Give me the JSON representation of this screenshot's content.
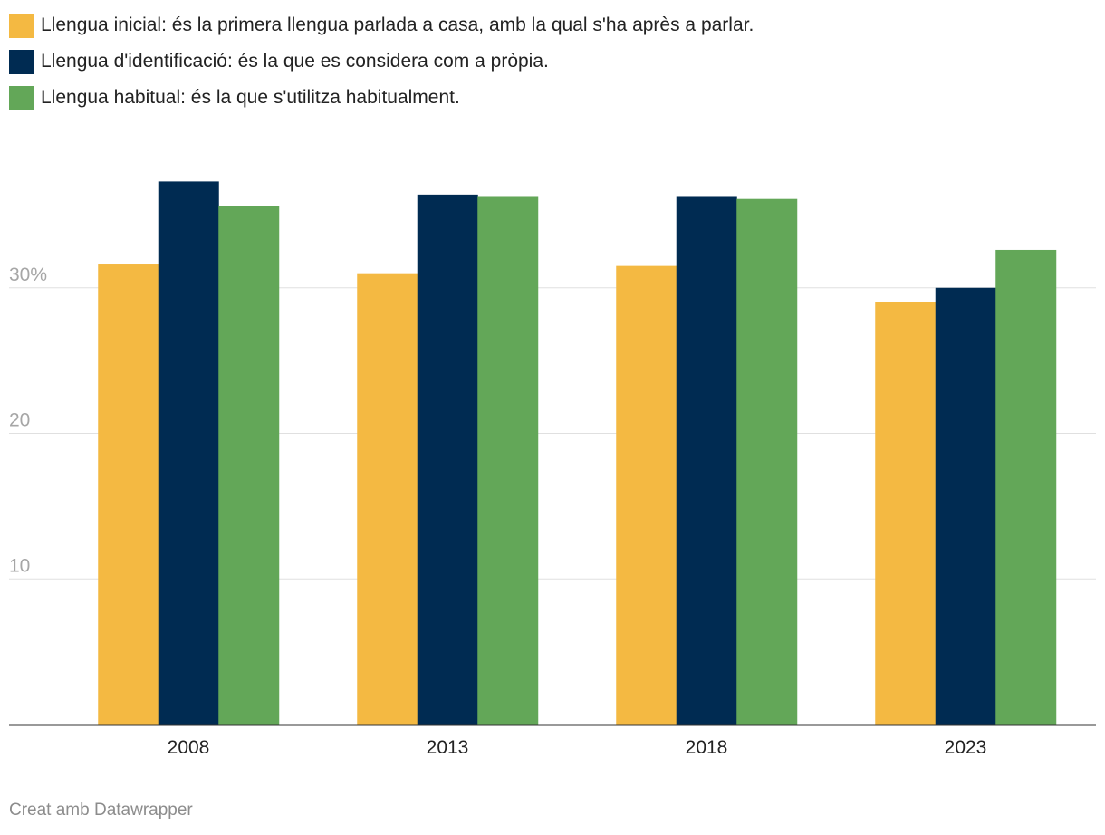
{
  "legend": [
    {
      "label": "Llengua inicial: és la primera llengua parlada a casa, amb la qual s'ha après a parlar.",
      "color": "#f4b942"
    },
    {
      "label": "Llengua d'identificació: és la que es considera com a pròpia.",
      "color": "#002b52"
    },
    {
      "label": "Llengua habitual: és la que s'utilitza habitualment.",
      "color": "#63a758"
    }
  ],
  "footer": {
    "credit": "Creat amb Datawrapper"
  },
  "chart_data": {
    "type": "bar",
    "categories": [
      "2008",
      "2013",
      "2018",
      "2023"
    ],
    "series": [
      {
        "name": "Llengua inicial: és la primera llengua parlada a casa, amb la qual s'ha après a parlar.",
        "color": "#f4b942",
        "values": [
          31.6,
          31.0,
          31.5,
          29.0
        ]
      },
      {
        "name": "Llengua d'identificació: és la que es considera com a pròpia.",
        "color": "#002b52",
        "values": [
          37.3,
          36.4,
          36.3,
          30.0
        ]
      },
      {
        "name": "Llengua habitual: és la que s'utilitza habitualment.",
        "color": "#63a758",
        "values": [
          35.6,
          36.3,
          36.1,
          32.6
        ]
      }
    ],
    "yticks": [
      10,
      20,
      30
    ],
    "ytick_labels": [
      "10",
      "20",
      "30%"
    ],
    "ylim": [
      0,
      40
    ],
    "grid": true,
    "title": "",
    "xlabel": "",
    "ylabel": ""
  }
}
